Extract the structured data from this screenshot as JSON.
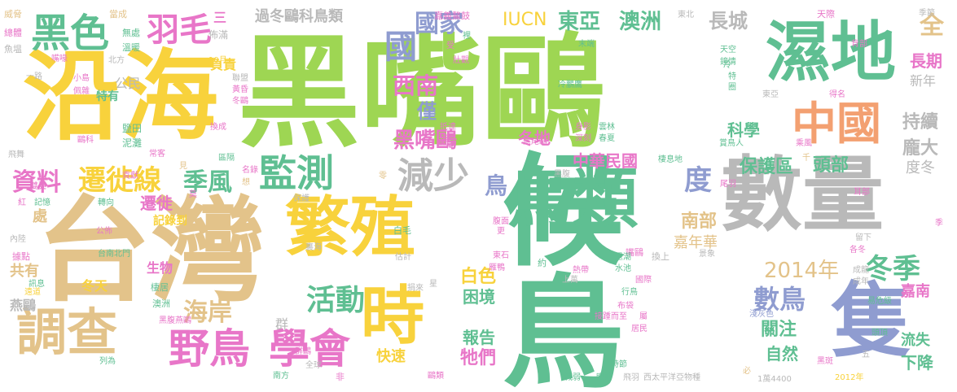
{
  "palette": {
    "green": "#9ed653",
    "teal": "#5fbf92",
    "gray": "#b9b9b9",
    "yellow": "#f8d23c",
    "tan": "#e3c38a",
    "orange": "#f3a071",
    "pink": "#e876c8",
    "blue": "#8f9cd0",
    "lgreen": "#a6d98a"
  },
  "words": [
    {
      "text": "黑嘴鷗",
      "color": "green"
    },
    {
      "text": "候鳥",
      "color": "teal"
    },
    {
      "text": "沿海",
      "color": "yellow"
    },
    {
      "text": "台灣",
      "color": "tan"
    },
    {
      "text": "數量",
      "color": "gray"
    },
    {
      "text": "濕地",
      "color": "teal"
    },
    {
      "text": "鳥類",
      "color": "teal"
    },
    {
      "text": "繁殖",
      "color": "yellow"
    },
    {
      "text": "隻",
      "color": "blue"
    },
    {
      "text": "中國",
      "color": "orange"
    },
    {
      "text": "時",
      "color": "yellow"
    },
    {
      "text": "調查",
      "color": "tan"
    },
    {
      "text": "學會",
      "color": "pink"
    },
    {
      "text": "野鳥",
      "color": "pink"
    },
    {
      "text": "監測",
      "color": "teal"
    },
    {
      "text": "遷徙線",
      "color": "yellow"
    },
    {
      "text": "黑色",
      "color": "teal"
    },
    {
      "text": "羽毛",
      "color": "pink"
    },
    {
      "text": "減少",
      "color": "gray"
    },
    {
      "text": "季風",
      "color": "teal"
    },
    {
      "text": "國",
      "color": "blue"
    },
    {
      "text": "國家",
      "color": "blue"
    },
    {
      "text": "IUCN",
      "color": "yellow"
    },
    {
      "text": "東亞",
      "color": "teal"
    },
    {
      "text": "澳洲",
      "color": "teal"
    },
    {
      "text": "西南",
      "color": "pink"
    },
    {
      "text": "資料",
      "color": "pink"
    },
    {
      "text": "活動",
      "color": "teal"
    },
    {
      "text": "海岸",
      "color": "tan"
    },
    {
      "text": "冬季",
      "color": "teal"
    },
    {
      "text": "2014年",
      "color": "tan"
    },
    {
      "text": "數鳥",
      "color": "blue"
    },
    {
      "text": "黑嘴鷗",
      "color": "pink"
    },
    {
      "text": "中華民國",
      "color": "pink"
    },
    {
      "text": "鳥",
      "color": "blue"
    },
    {
      "text": "度",
      "color": "blue"
    },
    {
      "text": "過冬鷗科鳥類",
      "color": "gray"
    },
    {
      "text": "長城",
      "color": "gray"
    },
    {
      "text": "全",
      "color": "tan"
    },
    {
      "text": "長期",
      "color": "pink"
    },
    {
      "text": "新年",
      "color": "gray"
    },
    {
      "text": "持續",
      "color": "gray"
    },
    {
      "text": "龐大",
      "color": "gray"
    },
    {
      "text": "度冬",
      "color": "gray"
    },
    {
      "text": "保護區",
      "color": "teal"
    },
    {
      "text": "頭部",
      "color": "teal"
    },
    {
      "text": "南部",
      "color": "tan"
    },
    {
      "text": "嘉年華",
      "color": "tan"
    },
    {
      "text": "科學",
      "color": "teal"
    },
    {
      "text": "僅",
      "color": "blue"
    },
    {
      "text": "冬地",
      "color": "pink"
    },
    {
      "text": "白色",
      "color": "yellow"
    },
    {
      "text": "困境",
      "color": "teal"
    },
    {
      "text": "報告",
      "color": "teal"
    },
    {
      "text": "牠們",
      "color": "pink"
    },
    {
      "text": "快速",
      "color": "yellow"
    },
    {
      "text": "關注",
      "color": "teal"
    },
    {
      "text": "嘉南",
      "color": "pink"
    },
    {
      "text": "自然",
      "color": "teal"
    },
    {
      "text": "流失",
      "color": "teal"
    },
    {
      "text": "下降",
      "color": "teal"
    },
    {
      "text": "冬天",
      "color": "yellow"
    },
    {
      "text": "遷徙",
      "color": "pink"
    },
    {
      "text": "記錄到",
      "color": "yellow"
    },
    {
      "text": "燕鷗",
      "color": "gray"
    },
    {
      "text": "共有",
      "color": "tan"
    },
    {
      "text": "處",
      "color": "tan"
    },
    {
      "text": "生物",
      "color": "pink"
    },
    {
      "text": "公民",
      "color": "gray"
    },
    {
      "text": "特有",
      "color": "teal"
    },
    {
      "text": "負責",
      "color": "yellow"
    },
    {
      "text": "群",
      "color": "gray"
    },
    {
      "text": "三",
      "color": "pink"
    },
    {
      "text": "佈滿",
      "color": "gray"
    },
    {
      "text": "當成",
      "color": "tan"
    },
    {
      "text": "威脅",
      "color": "tan"
    },
    {
      "text": "總體",
      "color": "pink"
    },
    {
      "text": "魚塭",
      "color": "gray"
    },
    {
      "text": "無處",
      "color": "teal"
    },
    {
      "text": "溫暖",
      "color": "teal"
    },
    {
      "text": "嘴喙",
      "color": "pink"
    },
    {
      "text": "北方",
      "color": "gray"
    },
    {
      "text": "一路",
      "color": "gray"
    },
    {
      "text": "飛舞",
      "color": "gray"
    },
    {
      "text": "10月",
      "color": "yellow"
    },
    {
      "text": "鹽田",
      "color": "teal"
    },
    {
      "text": "泥灘",
      "color": "teal"
    },
    {
      "text": "鷗科",
      "color": "pink"
    },
    {
      "text": "雙翼",
      "color": "pink"
    },
    {
      "text": "紅",
      "color": "pink"
    },
    {
      "text": "記憶",
      "color": "teal"
    },
    {
      "text": "轉向",
      "color": "teal"
    },
    {
      "text": "內陸",
      "color": "gray"
    },
    {
      "text": "據點",
      "color": "pink"
    },
    {
      "text": "訊息",
      "color": "teal"
    },
    {
      "text": "遠道",
      "color": "yellow"
    },
    {
      "text": "台南北門",
      "color": "teal"
    },
    {
      "text": "公佈",
      "color": "pink"
    },
    {
      "text": "棲居",
      "color": "teal"
    },
    {
      "text": "澳洲",
      "color": "teal"
    },
    {
      "text": "黑腹燕鷗",
      "color": "pink"
    },
    {
      "text": "列為",
      "color": "teal"
    },
    {
      "text": "南方",
      "color": "teal"
    },
    {
      "text": "非",
      "color": "pink"
    },
    {
      "text": "鷗類",
      "color": "pink"
    },
    {
      "text": "嘉義鰲鼓",
      "color": "pink"
    },
    {
      "text": "東北",
      "color": "gray"
    },
    {
      "text": "季節",
      "color": "gray"
    },
    {
      "text": "天際",
      "color": "pink"
    },
    {
      "text": "背部",
      "color": "pink"
    },
    {
      "text": "天空",
      "color": "teal"
    },
    {
      "text": "鐘情",
      "color": "teal"
    },
    {
      "text": "特",
      "color": "teal"
    },
    {
      "text": "圈",
      "color": "teal"
    },
    {
      "text": "得名",
      "color": "pink"
    },
    {
      "text": "冷鵬鷹",
      "color": "teal"
    },
    {
      "text": "末端",
      "color": "teal"
    },
    {
      "text": "雲林",
      "color": "teal"
    },
    {
      "text": "春夏",
      "color": "teal"
    },
    {
      "text": "身影",
      "color": "pink"
    },
    {
      "text": "深刻",
      "color": "pink"
    },
    {
      "text": "黑尾鷗",
      "color": "pink"
    },
    {
      "text": "東亞",
      "color": "gray"
    },
    {
      "text": "賞鳥人",
      "color": "teal"
    },
    {
      "text": "乘風",
      "color": "pink"
    },
    {
      "text": "棲息地",
      "color": "teal"
    },
    {
      "text": "尾羽",
      "color": "pink"
    },
    {
      "text": "耳部",
      "color": "pink"
    },
    {
      "text": "季",
      "color": "pink"
    },
    {
      "text": "留下",
      "color": "gray"
    },
    {
      "text": "白毛",
      "color": "teal"
    },
    {
      "text": "腹面",
      "color": "pink"
    },
    {
      "text": "更",
      "color": "pink"
    },
    {
      "text": "約",
      "color": "teal"
    },
    {
      "text": "熱帶",
      "color": "pink"
    },
    {
      "text": "景象",
      "color": "gray"
    },
    {
      "text": "各冬",
      "color": "pink"
    },
    {
      "text": "嘴鷗",
      "color": "pink"
    },
    {
      "text": "換上",
      "color": "gray"
    },
    {
      "text": "成龍",
      "color": "gray"
    },
    {
      "text": "成年",
      "color": "gray"
    },
    {
      "text": "易危級",
      "color": "teal"
    },
    {
      "text": "頭頂",
      "color": "teal"
    },
    {
      "text": "五",
      "color": "gray"
    },
    {
      "text": "2012年",
      "color": "yellow"
    },
    {
      "text": "黑斑",
      "color": "pink"
    },
    {
      "text": "淺灰色",
      "color": "blue"
    },
    {
      "text": "必",
      "color": "tan"
    },
    {
      "text": "1萬4400",
      "color": "gray"
    },
    {
      "text": "西太平洋亞物種",
      "color": "gray"
    },
    {
      "text": "飛羽",
      "color": "gray"
    },
    {
      "text": "減弱",
      "color": "teal"
    },
    {
      "text": "眼睛",
      "color": "teal"
    },
    {
      "text": "時節",
      "color": "teal"
    },
    {
      "text": "接踵而至",
      "color": "pink"
    },
    {
      "text": "屬",
      "color": "pink"
    },
    {
      "text": "居民",
      "color": "pink"
    },
    {
      "text": "布袋",
      "color": "pink"
    },
    {
      "text": "行鳥",
      "color": "teal"
    },
    {
      "text": "國際",
      "color": "pink"
    },
    {
      "text": "水池",
      "color": "teal"
    },
    {
      "text": "退潮",
      "color": "teal"
    },
    {
      "text": "上萬",
      "color": "gray"
    },
    {
      "text": "雁鴨",
      "color": "pink"
    },
    {
      "text": "東石",
      "color": "pink"
    },
    {
      "text": "黑腹",
      "color": "gray"
    },
    {
      "text": "抵達",
      "color": "pink"
    },
    {
      "text": "遠方",
      "color": "pink"
    },
    {
      "text": "受",
      "color": "pink"
    },
    {
      "text": "壯觀",
      "color": "pink"
    },
    {
      "text": "裡",
      "color": "teal"
    },
    {
      "text": "冬鷗",
      "color": "pink"
    },
    {
      "text": "黃昏",
      "color": "pink"
    },
    {
      "text": "聯盟",
      "color": "gray"
    },
    {
      "text": "換成",
      "color": "pink"
    },
    {
      "text": "常客",
      "color": "pink"
    },
    {
      "text": "見",
      "color": "tan"
    },
    {
      "text": "區隔",
      "color": "teal"
    },
    {
      "text": "名錄",
      "color": "pink"
    },
    {
      "text": "想",
      "color": "tan"
    },
    {
      "text": "保護",
      "color": "gray"
    },
    {
      "text": "莫",
      "color": "pink"
    },
    {
      "text": "零",
      "color": "tan"
    },
    {
      "text": "裏海",
      "color": "gray"
    },
    {
      "text": "捐來",
      "color": "gray"
    },
    {
      "text": "估計",
      "color": "gray"
    },
    {
      "text": "星",
      "color": "gray"
    },
    {
      "text": "群鷗",
      "color": "pink"
    },
    {
      "text": "全球",
      "color": "gray"
    },
    {
      "text": "貢獻",
      "color": "pink"
    },
    {
      "text": "小島",
      "color": "pink"
    },
    {
      "text": "佩雜",
      "color": "pink"
    },
    {
      "text": "千",
      "color": "tan"
    },
    {
      "text": "冷",
      "color": "teal"
    }
  ]
}
